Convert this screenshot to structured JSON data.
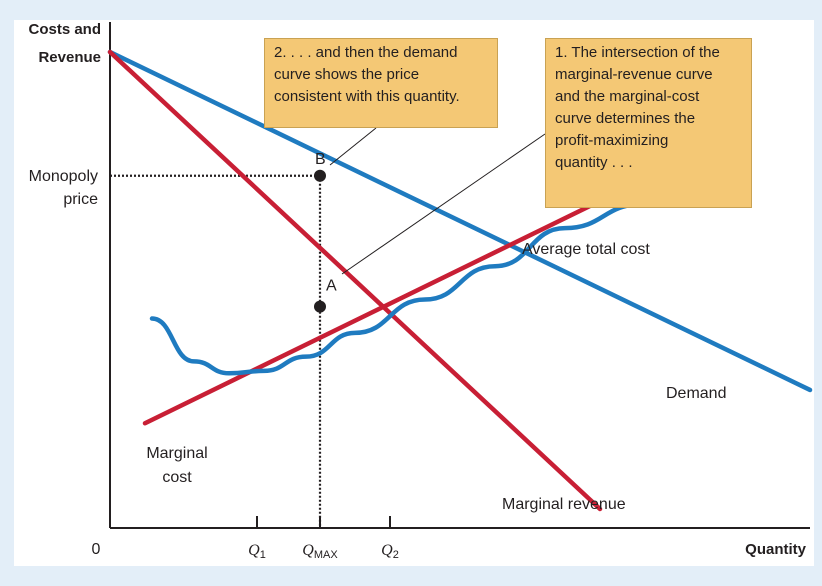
{
  "chart_data": {
    "type": "line",
    "title": "",
    "ylabel": "Costs and Revenue",
    "xlabel": "Quantity",
    "origin_label": "0",
    "y_tick_label": "Monopoly price",
    "x_ticks": [
      {
        "main": "Q",
        "sub": "1"
      },
      {
        "main": "Q",
        "sub": "MAX"
      },
      {
        "main": "Q",
        "sub": "2"
      }
    ],
    "series": [
      {
        "name": "Demand",
        "color": "#1f7bc0",
        "points": [
          [
            0,
            100
          ],
          [
            100,
            29
          ]
        ]
      },
      {
        "name": "Marginal revenue",
        "color": "#c81f35",
        "points": [
          [
            0,
            100
          ],
          [
            70,
            4
          ]
        ]
      },
      {
        "name": "Marginal cost",
        "color": "#c81f35",
        "points": [
          [
            5,
            22
          ],
          [
            76,
            73
          ]
        ]
      },
      {
        "name": "Average total cost",
        "color": "#1f7bc0",
        "points": [
          [
            6,
            44
          ],
          [
            12,
            35
          ],
          [
            17,
            32.5
          ],
          [
            22,
            33
          ],
          [
            28,
            36
          ],
          [
            35,
            41
          ],
          [
            45,
            48
          ],
          [
            55,
            55
          ],
          [
            65,
            63
          ],
          [
            76,
            68
          ]
        ]
      }
    ],
    "series_labels": {
      "demand": "Demand",
      "marginal_revenue": "Marginal revenue",
      "marginal_cost": [
        "Marginal",
        "cost"
      ],
      "average_total_cost": "Average total cost"
    },
    "points": [
      {
        "label": "B",
        "x": 30,
        "y": 74
      },
      {
        "label": "A",
        "x": 30,
        "y": 46.5
      }
    ],
    "xlim": [
      0,
      100
    ],
    "ylim": [
      0,
      100
    ],
    "grid": false,
    "annotations": {
      "callout_1": [
        "1. The intersection of the",
        "marginal-revenue curve",
        "and the marginal-cost",
        "curve determines the",
        "profit-maximizing",
        "quantity . . ."
      ],
      "callout_2": [
        "2. . . . and then the demand",
        "curve shows the price",
        "consistent with this quantity."
      ]
    },
    "colors": {
      "background": "#e3eef8",
      "callout": "#f4c875",
      "axis": "#231f20"
    }
  }
}
